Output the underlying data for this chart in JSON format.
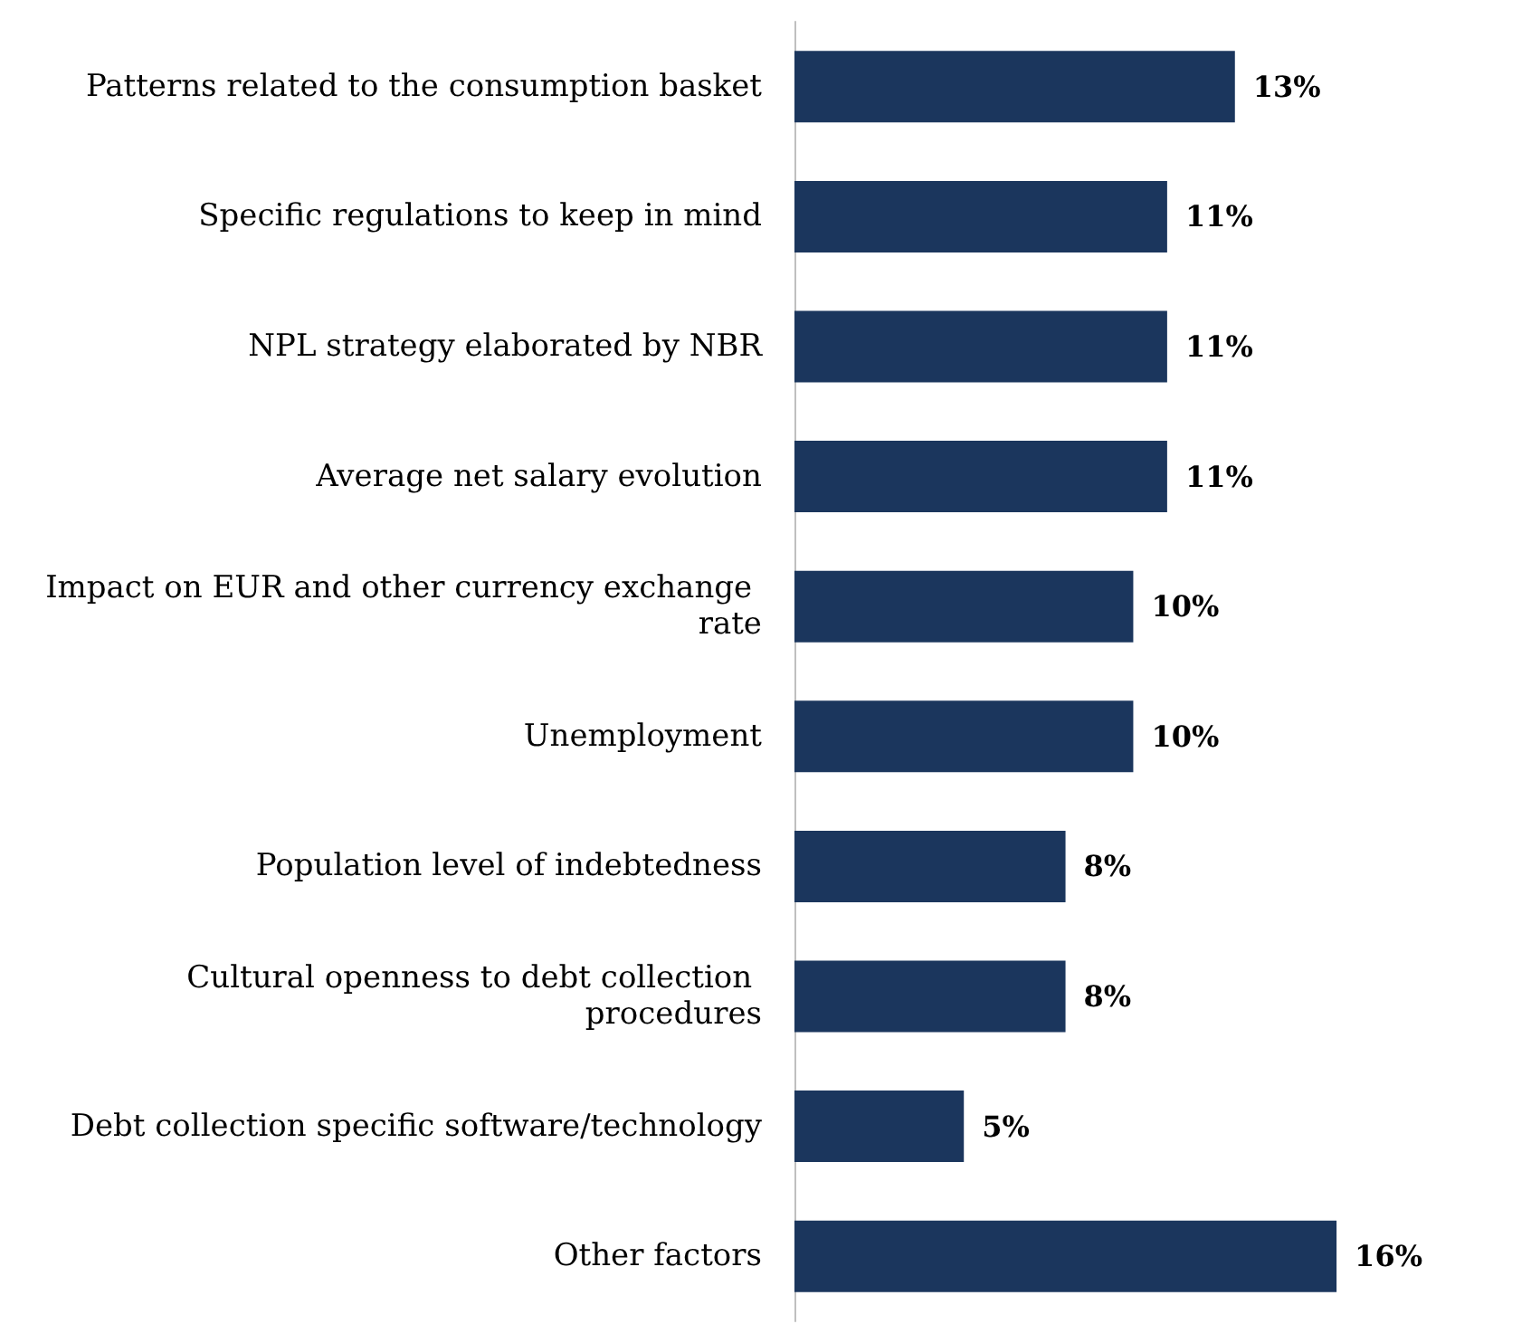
{
  "chart_data": {
    "type": "bar",
    "orientation": "horizontal",
    "categories": [
      "Patterns related to the consumption basket",
      "Specific regulations to keep in mind",
      "NPL strategy elaborated by NBR",
      "Average net salary evolution",
      "Impact on EUR and other currency exchange rate",
      "Unemployment",
      "Population level of indebtedness",
      "Cultural openness to debt collection procedures",
      "Debt collection specific software/technology",
      "Other factors"
    ],
    "values": [
      13,
      11,
      11,
      11,
      10,
      10,
      8,
      8,
      5,
      16
    ],
    "value_labels": [
      "13%",
      "11%",
      "11%",
      "11%",
      "10%",
      "10%",
      "8%",
      "8%",
      "5%",
      "16%"
    ],
    "color": "#1b365d",
    "grid": false
  }
}
